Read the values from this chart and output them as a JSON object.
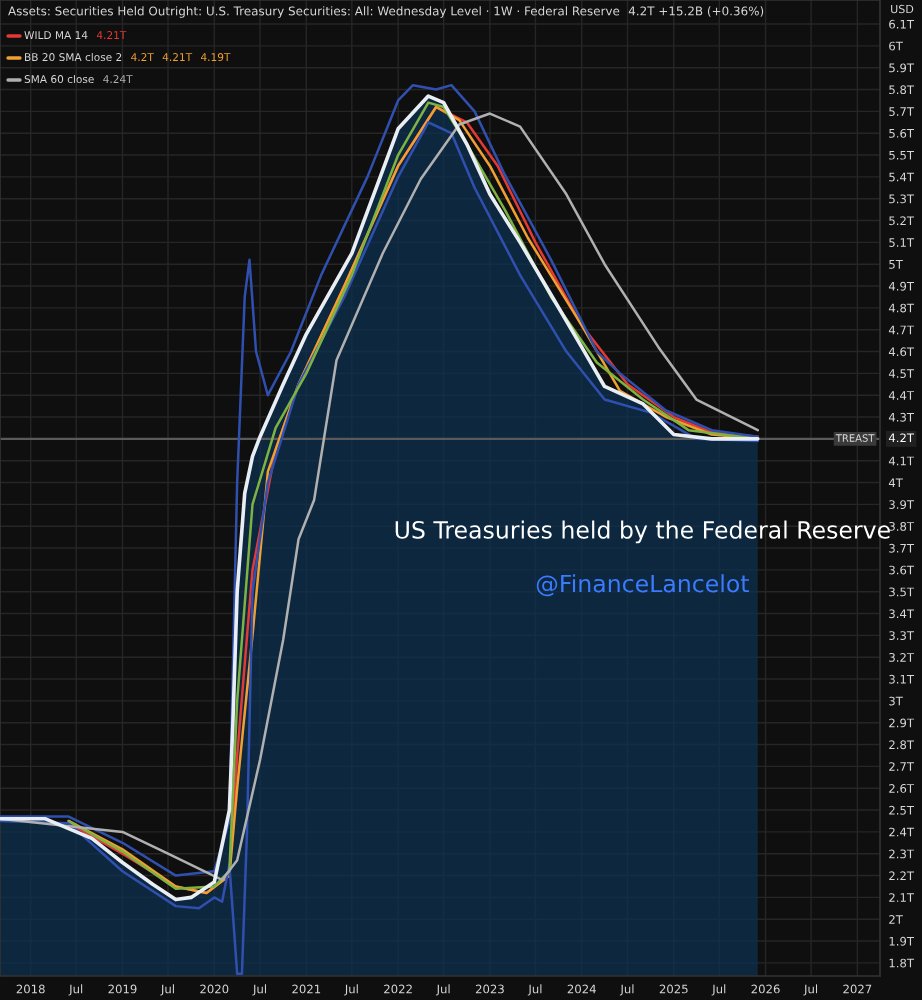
{
  "chart_data": {
    "type": "line",
    "title": "Assets: Securities Held Outright: U.S. Treasury Securities: All: Wednesday Level · 1W · Federal Reserve",
    "legend": "top left",
    "grid": true,
    "xlim": [
      "2017-09",
      "2027-04"
    ],
    "xticks": [
      {
        "value": "2018-01",
        "label": "2018"
      },
      {
        "value": "2018-07",
        "label": "Jul"
      },
      {
        "value": "2019-01",
        "label": "2019"
      },
      {
        "value": "2019-07",
        "label": "Jul"
      },
      {
        "value": "2020-01",
        "label": "2020"
      },
      {
        "value": "2020-07",
        "label": "Jul"
      },
      {
        "value": "2021-01",
        "label": "2021"
      },
      {
        "value": "2021-07",
        "label": "Jul"
      },
      {
        "value": "2022-01",
        "label": "2022"
      },
      {
        "value": "2022-07",
        "label": "Jul"
      },
      {
        "value": "2023-01",
        "label": "2023"
      },
      {
        "value": "2023-07",
        "label": "Jul"
      },
      {
        "value": "2024-01",
        "label": "2024"
      },
      {
        "value": "2024-07",
        "label": "Jul"
      },
      {
        "value": "2025-01",
        "label": "2025"
      },
      {
        "value": "2025-07",
        "label": "Jul"
      },
      {
        "value": "2026-01",
        "label": "2026"
      },
      {
        "value": "2026-07",
        "label": "Jul"
      },
      {
        "value": "2027-01",
        "label": "2027"
      }
    ],
    "ylim": [
      1.74,
      6.21
    ],
    "yticks": [
      {
        "value": 1.8,
        "label": "1.8T"
      },
      {
        "value": 1.9,
        "label": "1.9T"
      },
      {
        "value": 2.0,
        "label": "2T"
      },
      {
        "value": 2.1,
        "label": "2.1T"
      },
      {
        "value": 2.2,
        "label": "2.2T"
      },
      {
        "value": 2.3,
        "label": "2.3T"
      },
      {
        "value": 2.4,
        "label": "2.4T"
      },
      {
        "value": 2.5,
        "label": "2.5T"
      },
      {
        "value": 2.6,
        "label": "2.6T"
      },
      {
        "value": 2.7,
        "label": "2.7T"
      },
      {
        "value": 2.8,
        "label": "2.8T"
      },
      {
        "value": 2.9,
        "label": "2.9T"
      },
      {
        "value": 3.0,
        "label": "3T"
      },
      {
        "value": 3.1,
        "label": "3.1T"
      },
      {
        "value": 3.2,
        "label": "3.2T"
      },
      {
        "value": 3.3,
        "label": "3.3T"
      },
      {
        "value": 3.4,
        "label": "3.4T"
      },
      {
        "value": 3.5,
        "label": "3.5T"
      },
      {
        "value": 3.6,
        "label": "3.6T"
      },
      {
        "value": 3.7,
        "label": "3.7T"
      },
      {
        "value": 3.8,
        "label": "3.8T"
      },
      {
        "value": 3.9,
        "label": "3.9T"
      },
      {
        "value": 4.0,
        "label": "4T"
      },
      {
        "value": 4.1,
        "label": "4.1T"
      },
      {
        "value": 4.3,
        "label": "4.3T"
      },
      {
        "value": 4.4,
        "label": "4.4T"
      },
      {
        "value": 4.5,
        "label": "4.5T"
      },
      {
        "value": 4.6,
        "label": "4.6T"
      },
      {
        "value": 4.7,
        "label": "4.7T"
      },
      {
        "value": 4.8,
        "label": "4.8T"
      },
      {
        "value": 4.9,
        "label": "4.9T"
      },
      {
        "value": 5.0,
        "label": "5T"
      },
      {
        "value": 5.1,
        "label": "5.1T"
      },
      {
        "value": 5.2,
        "label": "5.2T"
      },
      {
        "value": 5.3,
        "label": "5.3T"
      },
      {
        "value": 5.4,
        "label": "5.4T"
      },
      {
        "value": 5.5,
        "label": "5.5T"
      },
      {
        "value": 5.6,
        "label": "5.6T"
      },
      {
        "value": 5.7,
        "label": "5.7T"
      },
      {
        "value": 5.8,
        "label": "5.8T"
      },
      {
        "value": 5.9,
        "label": "5.9T"
      },
      {
        "value": 6.0,
        "label": "6T"
      },
      {
        "value": 6.1,
        "label": "6.1T"
      }
    ],
    "ref_lines": [
      {
        "axis": "y",
        "value": 4.2,
        "label": "TREAST",
        "color": "#5a5a5a"
      }
    ],
    "series": [
      {
        "type": "area",
        "color": "#e8eef4",
        "x": [
          "2017-09",
          "2018-03",
          "2018-09",
          "2019-01",
          "2019-05",
          "2019-08",
          "2019-10",
          "2020-01",
          "2020-03-01",
          "2020-03-15",
          "2020-04-01",
          "2020-05-01",
          "2020-06-01",
          "2020-07-01",
          "2020-10",
          "2021-01",
          "2021-07",
          "2022-01",
          "2022-05",
          "2022-07",
          "2022-10",
          "2023-01",
          "2023-05",
          "2023-09",
          "2024-01",
          "2024-04",
          "2024-09",
          "2025-01",
          "2025-06",
          "2025-12"
        ],
        "values": [
          2.46,
          2.46,
          2.37,
          2.26,
          2.16,
          2.09,
          2.1,
          2.17,
          2.5,
          2.9,
          3.5,
          3.95,
          4.12,
          4.21,
          4.45,
          4.68,
          5.05,
          5.62,
          5.77,
          5.74,
          5.55,
          5.32,
          5.1,
          4.86,
          4.62,
          4.44,
          4.36,
          4.22,
          4.2,
          4.2
        ]
      },
      {
        "name": "WILD MA 14",
        "color": "#e53935",
        "x": [
          "2018-06",
          "2019-01",
          "2019-08",
          "2019-12",
          "2020-03",
          "2020-04",
          "2020-06",
          "2020-09",
          "2020-12",
          "2021-06",
          "2022-01",
          "2022-06",
          "2022-10",
          "2023-02",
          "2023-07",
          "2024-01",
          "2024-07",
          "2025-01",
          "2025-06",
          "2025-12"
        ],
        "values": [
          2.44,
          2.3,
          2.15,
          2.12,
          2.2,
          2.75,
          3.6,
          4.15,
          4.45,
          4.9,
          5.45,
          5.72,
          5.65,
          5.45,
          5.1,
          4.72,
          4.45,
          4.3,
          4.23,
          4.21
        ]
      },
      {
        "name": "BB 20 SMA close 2",
        "color": "#f0a030",
        "x": [
          "2018-06",
          "2019-01",
          "2019-08",
          "2019-12",
          "2020-03",
          "2020-04",
          "2020-06",
          "2020-08",
          "2020-12",
          "2021-06",
          "2022-01",
          "2022-06",
          "2022-09",
          "2023-01",
          "2023-06",
          "2024-01",
          "2024-06",
          "2024-12",
          "2025-06",
          "2025-12"
        ],
        "values": [
          2.45,
          2.32,
          2.15,
          2.12,
          2.2,
          2.6,
          3.3,
          4.05,
          4.45,
          4.9,
          5.45,
          5.72,
          5.66,
          5.45,
          5.12,
          4.72,
          4.42,
          4.3,
          4.22,
          4.2
        ]
      },
      {
        "color": "#3050b0",
        "x": [
          "2017-09",
          "2018-06",
          "2019-01",
          "2019-08",
          "2020-01",
          "2020-03",
          "2020-04",
          "2020-05",
          "2020-05-20",
          "2020-06-15",
          "2020-08",
          "2020-11",
          "2021-03",
          "2021-09",
          "2022-01",
          "2022-03",
          "2022-06",
          "2022-08",
          "2022-11",
          "2023-03",
          "2023-09",
          "2024-03",
          "2024-06",
          "2024-12",
          "2025-06",
          "2025-12"
        ],
        "values": [
          2.47,
          2.47,
          2.35,
          2.2,
          2.22,
          2.45,
          4.0,
          4.85,
          5.02,
          4.6,
          4.4,
          4.6,
          4.95,
          5.4,
          5.75,
          5.82,
          5.8,
          5.82,
          5.7,
          5.41,
          5.02,
          4.6,
          4.5,
          4.33,
          4.24,
          4.21
        ]
      },
      {
        "color": "#3050b0",
        "x": [
          "2017-09",
          "2018-06",
          "2019-01",
          "2019-08",
          "2019-11",
          "2020-01",
          "2020-02",
          "2020-03",
          "2020-04-01",
          "2020-04-20",
          "2020-05-10",
          "2020-06",
          "2020-08",
          "2020-12",
          "2021-06",
          "2022-01",
          "2022-05",
          "2022-08",
          "2022-11",
          "2023-05",
          "2023-11",
          "2024-04",
          "2024-10",
          "2025-04",
          "2025-12"
        ],
        "values": [
          2.45,
          2.44,
          2.22,
          2.06,
          2.05,
          2.1,
          2.08,
          2.25,
          1.75,
          1.75,
          2.4,
          3.5,
          4.0,
          4.45,
          4.85,
          5.4,
          5.65,
          5.6,
          5.35,
          4.95,
          4.6,
          4.38,
          4.32,
          4.2,
          4.19
        ]
      },
      {
        "color": "#7cb342",
        "x": [
          "2018-06",
          "2019-01",
          "2019-08",
          "2020-01",
          "2020-03",
          "2020-04",
          "2020-06",
          "2020-09",
          "2021-01",
          "2021-07",
          "2022-01",
          "2022-05",
          "2022-07",
          "2022-10",
          "2023-03",
          "2023-09",
          "2024-03",
          "2024-09",
          "2025-03",
          "2025-12"
        ],
        "values": [
          2.45,
          2.31,
          2.14,
          2.15,
          2.22,
          3.0,
          3.9,
          4.25,
          4.5,
          4.95,
          5.5,
          5.74,
          5.72,
          5.55,
          5.25,
          4.85,
          4.55,
          4.38,
          4.24,
          4.2
        ]
      },
      {
        "name": "SMA 60 close",
        "color": "#b0b0b0",
        "x": [
          "2017-09",
          "2019-01",
          "2019-07",
          "2020-02",
          "2020-04",
          "2020-07",
          "2020-10",
          "2020-12",
          "2021-02",
          "2021-05",
          "2021-11",
          "2022-04",
          "2022-09",
          "2023-01",
          "2023-05",
          "2023-11",
          "2024-04",
          "2024-11",
          "2025-04",
          "2025-12"
        ],
        "values": [
          2.46,
          2.4,
          2.3,
          2.18,
          2.27,
          2.73,
          3.28,
          3.74,
          3.92,
          4.56,
          5.05,
          5.39,
          5.64,
          5.69,
          5.63,
          5.32,
          5.0,
          4.62,
          4.38,
          4.24
        ]
      }
    ],
    "annotations": [
      "4.2T +15.2B (+0.36%)",
      "4.21T",
      "4.2T",
      "4.21T",
      "4.19T",
      "4.24T",
      "US Treasuries held by the Federal Reserve",
      "@FinanceLancelot",
      "USD",
      "4.2T"
    ]
  }
}
